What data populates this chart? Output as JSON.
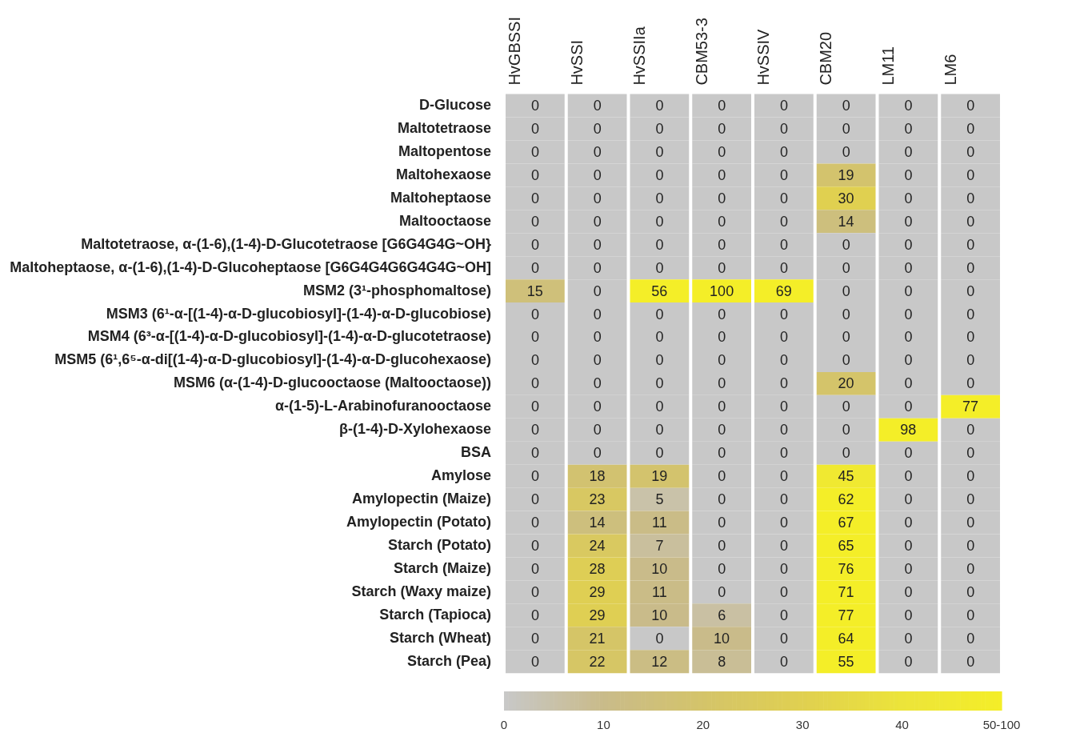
{
  "chart_data": {
    "type": "heatmap",
    "data_labels": true,
    "categories": [
      "HvGBSSI",
      "HvSSI",
      "HvSSIIa",
      "CBM53-3",
      "HvSSIV",
      "CBM20",
      "LM11",
      "LM6"
    ],
    "y_categories": [
      "D-Glucose",
      "Maltotetraose",
      "Maltopentose",
      "Maltohexaose",
      "Maltoheptaose",
      "Maltooctaose",
      "Maltotetraose, α-(1-6),(1-4)-D-Glucotetraose [G6G4G4G~OH}",
      "Maltoheptaose, α-(1-6),(1-4)-D-Glucoheptaose [G6G4G4G6G4G4G~OH]",
      "MSM2 (3¹-phosphomaltose)",
      "MSM3 (6¹-α-[(1-4)-α-D-glucobiosyl]-(1-4)-α-D-glucobiose)",
      "MSM4 (6³-α-[(1-4)-α-D-glucobiosyl]-(1-4)-α-D-glucotetraose)",
      "MSM5 (6¹,6⁵-α-di[(1-4)-α-D-glucobiosyl]-(1-4)-α-D-glucohexaose)",
      "MSM6 (α-(1-4)-D-glucooctaose (Maltooctaose))",
      "α-(1-5)-L-Arabinofuranooctaose",
      "β-(1-4)-D-Xylohexaose",
      "BSA",
      "Amylose",
      "Amylopectin (Maize)",
      "Amylopectin (Potato)",
      "Starch (Potato)",
      "Starch (Maize)",
      "Starch (Waxy maize)",
      "Starch (Tapioca)",
      "Starch (Wheat)",
      "Starch (Pea)"
    ],
    "cells": [
      [
        0,
        0,
        0,
        0,
        0,
        0,
        0,
        0
      ],
      [
        0,
        0,
        0,
        0,
        0,
        0,
        0,
        0
      ],
      [
        0,
        0,
        0,
        0,
        0,
        0,
        0,
        0
      ],
      [
        0,
        0,
        0,
        0,
        0,
        19,
        0,
        0
      ],
      [
        0,
        0,
        0,
        0,
        0,
        30,
        0,
        0
      ],
      [
        0,
        0,
        0,
        0,
        0,
        14,
        0,
        0
      ],
      [
        0,
        0,
        0,
        0,
        0,
        0,
        0,
        0
      ],
      [
        0,
        0,
        0,
        0,
        0,
        0,
        0,
        0
      ],
      [
        15,
        0,
        56,
        100,
        69,
        0,
        0,
        0
      ],
      [
        0,
        0,
        0,
        0,
        0,
        0,
        0,
        0
      ],
      [
        0,
        0,
        0,
        0,
        0,
        0,
        0,
        0
      ],
      [
        0,
        0,
        0,
        0,
        0,
        0,
        0,
        0
      ],
      [
        0,
        0,
        0,
        0,
        0,
        20,
        0,
        0
      ],
      [
        0,
        0,
        0,
        0,
        0,
        0,
        0,
        77
      ],
      [
        0,
        0,
        0,
        0,
        0,
        0,
        98,
        0
      ],
      [
        0,
        0,
        0,
        0,
        0,
        0,
        0,
        0
      ],
      [
        0,
        18,
        19,
        0,
        0,
        45,
        0,
        0
      ],
      [
        0,
        23,
        5,
        0,
        0,
        62,
        0,
        0
      ],
      [
        0,
        14,
        11,
        0,
        0,
        67,
        0,
        0
      ],
      [
        0,
        24,
        7,
        0,
        0,
        65,
        0,
        0
      ],
      [
        0,
        28,
        10,
        0,
        0,
        76,
        0,
        0
      ],
      [
        0,
        29,
        11,
        0,
        0,
        71,
        0,
        0
      ],
      [
        0,
        29,
        10,
        6,
        0,
        77,
        0,
        0
      ],
      [
        0,
        21,
        0,
        10,
        0,
        64,
        0,
        0
      ],
      [
        0,
        22,
        12,
        8,
        0,
        55,
        0,
        0
      ]
    ],
    "cticks": [
      0,
      10,
      20,
      30,
      40,
      {
        "value": 50,
        "label": "50-100"
      }
    ]
  }
}
